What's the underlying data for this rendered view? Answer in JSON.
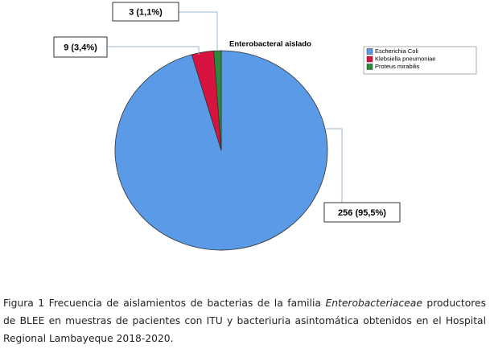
{
  "chart_data": {
    "type": "pie",
    "legend_title": "Enterobacteral aislado",
    "categories": [
      "Escherichia Coli",
      "Klebsiella pneumoniae",
      "Proteus mirabilis"
    ],
    "values": [
      256,
      9,
      3
    ],
    "value_labels": [
      "256 (95,5%)",
      "9 (3,4%)",
      "3 (1,1%)"
    ],
    "colors": [
      "#5b9ae6",
      "#d7133f",
      "#2c8a3c"
    ],
    "legend_position": "upper right"
  },
  "caption": {
    "before": "Figura 1 Frecuencia de aislamientos de bacterias de la familia ",
    "italic": "Enterobacteriaceae",
    "after": " productores de BLEE en muestras de pacientes con ITU y bacteriuria asintomática obtenidos en el Hospital Regional Lambayeque 2018-2020."
  }
}
